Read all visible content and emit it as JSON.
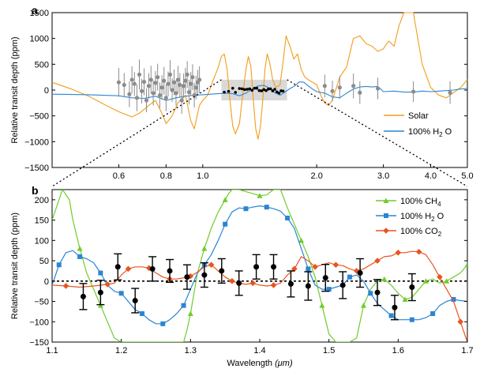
{
  "chart_data": [
    {
      "panel_label": "a",
      "type": "line",
      "x_scale": "log",
      "xlim": [
        0.4,
        5.0
      ],
      "ylim": [
        -1500,
        1500
      ],
      "ylabel": "Relative transit depth (ppm)",
      "xticks": [
        0.6,
        0.8,
        1.0,
        2.0,
        3.0,
        4.0,
        5.0
      ],
      "xtick_labels": [
        "0.6",
        "0.8",
        "1.0",
        "2.0",
        "3.0",
        "4.0",
        "5.0"
      ],
      "yticks": [
        -1500,
        -1000,
        -500,
        0,
        500,
        1000,
        1500
      ],
      "legend_position": "bottom-right",
      "series": [
        {
          "name": "Solar",
          "name_sub": "",
          "color": "#f39c1a",
          "x": [
            0.4,
            0.45,
            0.5,
            0.55,
            0.6,
            0.65,
            0.68,
            0.72,
            0.75,
            0.78,
            0.8,
            0.83,
            0.86,
            0.9,
            0.93,
            0.95,
            0.98,
            1.0,
            1.03,
            1.06,
            1.1,
            1.12,
            1.14,
            1.16,
            1.18,
            1.2,
            1.22,
            1.25,
            1.27,
            1.3,
            1.32,
            1.34,
            1.36,
            1.38,
            1.4,
            1.42,
            1.44,
            1.46,
            1.48,
            1.5,
            1.53,
            1.56,
            1.6,
            1.63,
            1.66,
            1.7,
            1.74,
            1.78,
            1.82,
            1.86,
            1.9,
            1.95,
            2.0,
            2.05,
            2.1,
            2.15,
            2.2,
            2.3,
            2.4,
            2.5,
            2.6,
            2.7,
            2.8,
            2.9,
            3.0,
            3.1,
            3.2,
            3.3,
            3.4,
            3.5,
            3.6,
            3.8,
            4.0,
            4.2,
            4.4,
            4.6,
            4.8,
            5.0
          ],
          "y": [
            150,
            20,
            -120,
            -280,
            -420,
            -520,
            -450,
            -300,
            -200,
            -450,
            -650,
            -500,
            -250,
            -100,
            -600,
            -750,
            -300,
            -200,
            -100,
            150,
            450,
            650,
            700,
            400,
            -200,
            -700,
            -850,
            -650,
            -200,
            400,
            650,
            450,
            -200,
            -750,
            -950,
            -700,
            -200,
            400,
            700,
            550,
            200,
            50,
            100,
            550,
            1050,
            850,
            600,
            700,
            400,
            250,
            200,
            150,
            100,
            -100,
            -250,
            -300,
            -200,
            250,
            450,
            1000,
            1050,
            900,
            850,
            750,
            800,
            950,
            850,
            1250,
            1500,
            1500,
            1500,
            500,
            50,
            -100,
            -150,
            -50,
            50,
            200
          ]
        },
        {
          "name": "100% H",
          "name_sub": "2",
          "name_tail": " O",
          "color": "#2b85d3",
          "x": [
            0.4,
            0.5,
            0.6,
            0.65,
            0.7,
            0.75,
            0.8,
            0.85,
            0.9,
            0.95,
            1.0,
            1.05,
            1.1,
            1.15,
            1.2,
            1.25,
            1.3,
            1.35,
            1.4,
            1.45,
            1.5,
            1.55,
            1.6,
            1.65,
            1.7,
            1.75,
            1.8,
            1.85,
            1.9,
            1.95,
            2.0,
            2.1,
            2.2,
            2.3,
            2.4,
            2.5,
            2.6,
            2.7,
            2.8,
            2.9,
            3.0,
            3.2,
            3.4,
            3.6,
            3.8,
            4.0,
            4.2,
            4.4,
            4.6,
            4.8,
            5.0
          ],
          "y": [
            -80,
            -90,
            -110,
            -150,
            -160,
            -120,
            -200,
            -150,
            -120,
            -100,
            -90,
            -80,
            -70,
            -60,
            -70,
            -110,
            -60,
            20,
            80,
            90,
            40,
            -50,
            -100,
            -40,
            30,
            80,
            160,
            150,
            80,
            20,
            -30,
            -60,
            -130,
            -150,
            -60,
            20,
            60,
            70,
            60,
            70,
            -30,
            -20,
            -40,
            -40,
            -20,
            -30,
            -20,
            -10,
            0,
            20,
            30
          ]
        }
      ],
      "observations": {
        "name": "data (grey)",
        "color": "#8c8c8c",
        "x": [
          0.6,
          0.62,
          0.64,
          0.65,
          0.66,
          0.67,
          0.68,
          0.69,
          0.7,
          0.71,
          0.72,
          0.73,
          0.74,
          0.75,
          0.76,
          0.77,
          0.78,
          0.79,
          0.8,
          0.81,
          0.82,
          0.83,
          0.84,
          0.85,
          0.86,
          0.87,
          0.88,
          0.89,
          0.9,
          0.91,
          0.92,
          0.93,
          0.94,
          0.95,
          0.96,
          0.97,
          0.98,
          2.1,
          2.2,
          2.3,
          2.5,
          2.6,
          2.9,
          3.6,
          4.5
        ],
        "y": [
          150,
          100,
          -80,
          200,
          120,
          -150,
          300,
          -20,
          160,
          -200,
          80,
          200,
          -60,
          140,
          250,
          -100,
          50,
          180,
          -150,
          120,
          300,
          0,
          150,
          -60,
          200,
          100,
          -200,
          80,
          180,
          300,
          -40,
          120,
          250,
          -100,
          50,
          150,
          200,
          80,
          -20,
          50,
          80,
          -50,
          30,
          -30,
          -50
        ],
        "err": [
          280,
          230,
          250,
          260,
          230,
          260,
          290,
          240,
          260,
          230,
          250,
          270,
          240,
          230,
          260,
          250,
          240,
          270,
          260,
          240,
          280,
          230,
          250,
          240,
          270,
          230,
          260,
          240,
          250,
          260,
          240,
          230,
          250,
          240,
          230,
          240,
          260,
          220,
          200,
          220,
          240,
          220,
          210,
          200,
          220
        ]
      },
      "highlight_band": {
        "x": [
          1.12,
          1.67
        ],
        "y": [
          -200,
          200
        ]
      },
      "zoom_dots": {
        "x": [
          1.14,
          1.17,
          1.2,
          1.22,
          1.25,
          1.27,
          1.29,
          1.31,
          1.33,
          1.35,
          1.37,
          1.39,
          1.41,
          1.43,
          1.45,
          1.47,
          1.49,
          1.51,
          1.53,
          1.55,
          1.57,
          1.59,
          1.61,
          1.63
        ],
        "y": [
          -40,
          -25,
          35,
          -45,
          30,
          25,
          10,
          15,
          25,
          -5,
          35,
          35,
          -10,
          -15,
          10,
          -10,
          20,
          25,
          -15,
          15,
          -35,
          -60,
          -15,
          -20
        ]
      }
    },
    {
      "panel_label": "b",
      "type": "line",
      "xlim": [
        1.1,
        1.7
      ],
      "ylim": [
        -150,
        225
      ],
      "xlabel": "Wavelength",
      "xlabel_unit": "(μm)",
      "ylabel": "Relative transit depth (ppm)",
      "xticks": [
        1.1,
        1.2,
        1.3,
        1.4,
        1.5,
        1.6,
        1.7
      ],
      "xtick_labels": [
        "1.1",
        "1.2",
        "1.3",
        "1.4",
        "1.5",
        "1.6",
        "1.7"
      ],
      "yticks": [
        -150,
        -100,
        -50,
        0,
        50,
        100,
        150,
        200
      ],
      "legend_position": "top-right",
      "series": [
        {
          "name": "100% CH",
          "name_sub": "4",
          "color": "#6fcc2a",
          "marker": "triangle",
          "x": [
            1.1,
            1.115,
            1.125,
            1.13,
            1.14,
            1.15,
            1.16,
            1.17,
            1.18,
            1.19,
            1.2,
            1.21,
            1.215,
            1.22,
            1.23,
            1.24,
            1.25,
            1.26,
            1.27,
            1.28,
            1.29,
            1.295,
            1.3,
            1.305,
            1.31,
            1.32,
            1.33,
            1.34,
            1.35,
            1.355,
            1.36,
            1.37,
            1.38,
            1.39,
            1.4,
            1.41,
            1.42,
            1.43,
            1.44,
            1.45,
            1.46,
            1.47,
            1.48,
            1.49,
            1.5,
            1.51,
            1.52,
            1.53,
            1.54,
            1.55,
            1.56,
            1.57,
            1.58,
            1.59,
            1.6,
            1.61,
            1.62,
            1.63,
            1.64,
            1.65,
            1.66,
            1.67,
            1.68,
            1.69,
            1.7
          ],
          "y": [
            150,
            225,
            200,
            150,
            80,
            20,
            -20,
            -60,
            -100,
            -140,
            -150,
            -150,
            -150,
            -150,
            -150,
            -150,
            -150,
            -150,
            -150,
            -150,
            -150,
            -120,
            -80,
            -30,
            20,
            80,
            130,
            170,
            200,
            215,
            225,
            225,
            220,
            215,
            210,
            212,
            225,
            225,
            180,
            140,
            100,
            60,
            10,
            -60,
            -130,
            -150,
            -150,
            -150,
            -140,
            -60,
            -20,
            0,
            5,
            -10,
            -30,
            -45,
            -40,
            -20,
            0,
            5,
            -5,
            0,
            10,
            20,
            40
          ]
        },
        {
          "name": "100% H",
          "name_sub": "2",
          "name_tail": " O",
          "color": "#2b85d3",
          "marker": "square",
          "x": [
            1.1,
            1.11,
            1.12,
            1.13,
            1.14,
            1.15,
            1.16,
            1.17,
            1.18,
            1.19,
            1.2,
            1.21,
            1.22,
            1.23,
            1.24,
            1.25,
            1.26,
            1.27,
            1.28,
            1.29,
            1.3,
            1.31,
            1.32,
            1.33,
            1.34,
            1.35,
            1.36,
            1.37,
            1.38,
            1.39,
            1.4,
            1.41,
            1.42,
            1.43,
            1.44,
            1.45,
            1.46,
            1.47,
            1.48,
            1.49,
            1.5,
            1.51,
            1.52,
            1.53,
            1.54,
            1.55,
            1.56,
            1.57,
            1.58,
            1.59,
            1.6,
            1.61,
            1.62,
            1.63,
            1.64,
            1.65,
            1.66,
            1.67,
            1.68,
            1.69,
            1.7
          ],
          "y": [
            -10,
            40,
            70,
            75,
            60,
            55,
            45,
            20,
            -10,
            -25,
            -30,
            -50,
            -70,
            -80,
            -95,
            -105,
            -105,
            -95,
            -80,
            -60,
            -20,
            20,
            40,
            65,
            100,
            140,
            170,
            180,
            178,
            182,
            185,
            182,
            178,
            172,
            155,
            130,
            80,
            30,
            -10,
            -20,
            -20,
            -15,
            -10,
            10,
            15,
            0,
            -30,
            -55,
            -70,
            -85,
            -95,
            -95,
            -95,
            -95,
            -90,
            -80,
            -60,
            -50,
            -45,
            -48,
            -50
          ]
        },
        {
          "name": "100% CO",
          "name_sub": "2",
          "color": "#e8541f",
          "marker": "diamond",
          "x": [
            1.1,
            1.12,
            1.14,
            1.16,
            1.18,
            1.19,
            1.2,
            1.21,
            1.22,
            1.23,
            1.24,
            1.25,
            1.26,
            1.27,
            1.28,
            1.29,
            1.3,
            1.31,
            1.32,
            1.33,
            1.34,
            1.35,
            1.36,
            1.37,
            1.38,
            1.39,
            1.4,
            1.41,
            1.42,
            1.43,
            1.44,
            1.45,
            1.46,
            1.47,
            1.48,
            1.49,
            1.5,
            1.51,
            1.52,
            1.53,
            1.54,
            1.55,
            1.56,
            1.57,
            1.58,
            1.59,
            1.6,
            1.61,
            1.62,
            1.63,
            1.64,
            1.65,
            1.66,
            1.67,
            1.68,
            1.69,
            1.7
          ],
          "y": [
            -10,
            -12,
            -15,
            -12,
            -8,
            -5,
            15,
            30,
            35,
            35,
            32,
            20,
            10,
            5,
            5,
            8,
            12,
            22,
            35,
            40,
            25,
            10,
            0,
            -5,
            -8,
            -5,
            -10,
            -12,
            -10,
            -5,
            15,
            30,
            60,
            50,
            35,
            40,
            45,
            40,
            38,
            30,
            25,
            30,
            40,
            50,
            60,
            62,
            70,
            70,
            73,
            72,
            65,
            40,
            10,
            -20,
            -50,
            -100,
            -150
          ]
        }
      ],
      "observations": {
        "name": "data (black)",
        "color": "#000000",
        "x": [
          1.145,
          1.17,
          1.195,
          1.22,
          1.245,
          1.27,
          1.295,
          1.32,
          1.345,
          1.37,
          1.395,
          1.42,
          1.445,
          1.47,
          1.495,
          1.52,
          1.545,
          1.57,
          1.595,
          1.62
        ],
        "y": [
          -38,
          -28,
          35,
          -48,
          30,
          25,
          10,
          15,
          25,
          -5,
          35,
          35,
          -7,
          -12,
          8,
          -10,
          20,
          -28,
          -65,
          -15
        ],
        "err": [
          32,
          30,
          32,
          30,
          30,
          28,
          30,
          30,
          30,
          30,
          30,
          30,
          32,
          35,
          33,
          33,
          35,
          32,
          30,
          33
        ]
      },
      "zero_line": 0
    }
  ]
}
